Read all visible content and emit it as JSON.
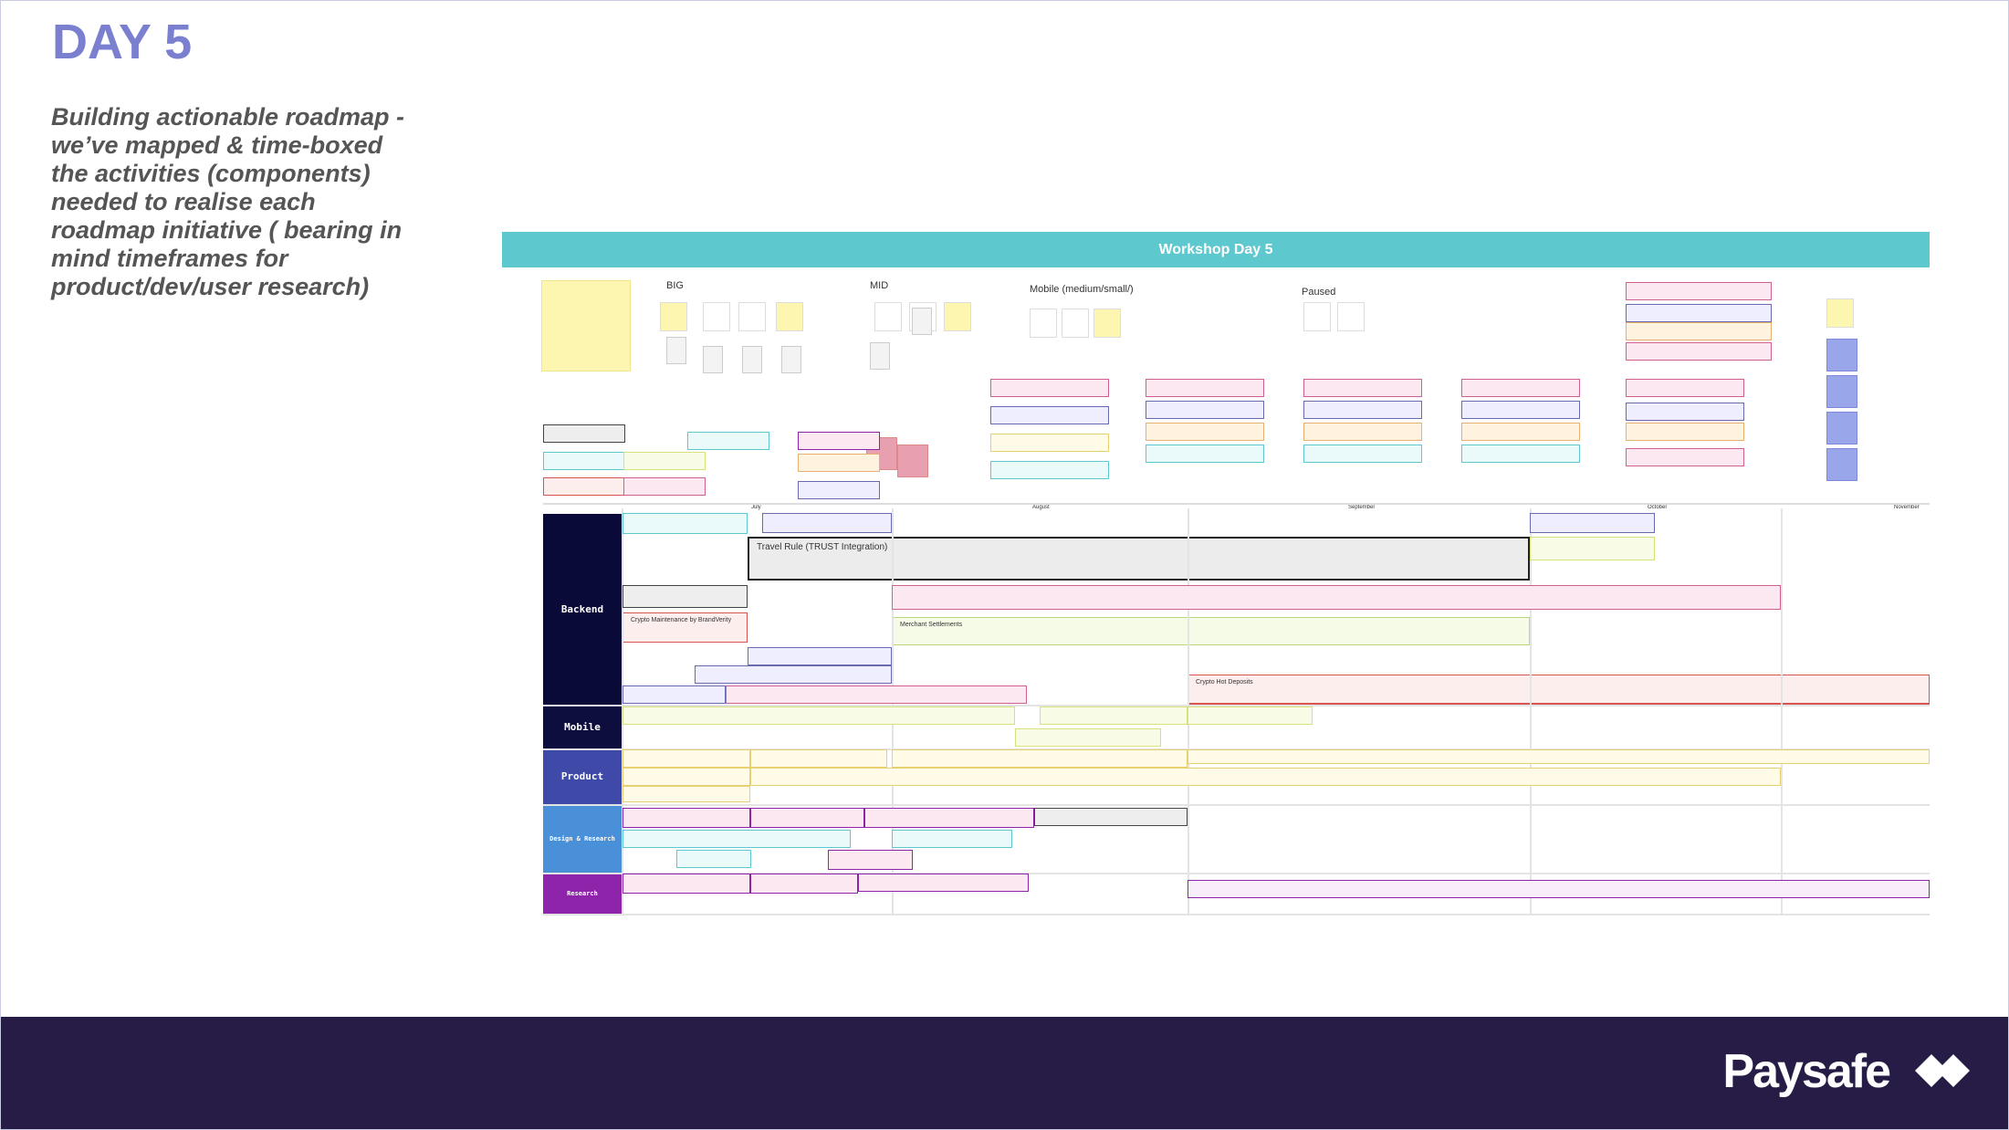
{
  "header": {
    "title": "DAY 5",
    "subtitle": "Building actionable roadmap - we’ve mapped & time-boxed the activities (components) needed to realise each roadmap initiative ( bearing in mind timeframes for product/dev/user research)"
  },
  "board": {
    "banner": "Workshop Day 5",
    "sections": [
      "BIG",
      "MID",
      "Mobile (medium/small/)",
      "Paused"
    ],
    "months": [
      "July",
      "August",
      "September",
      "October",
      "November"
    ],
    "lanes": [
      "Backend",
      "Mobile",
      "Product",
      "Design & Research",
      "Research"
    ],
    "items": [
      "Travel Rule (TRUST Integration)",
      "Crypto Maintenance by BrandVerity",
      "Merchant Settlements",
      "Crypto Hot Deposits"
    ]
  },
  "footer": {
    "logo": "Paysafe"
  }
}
